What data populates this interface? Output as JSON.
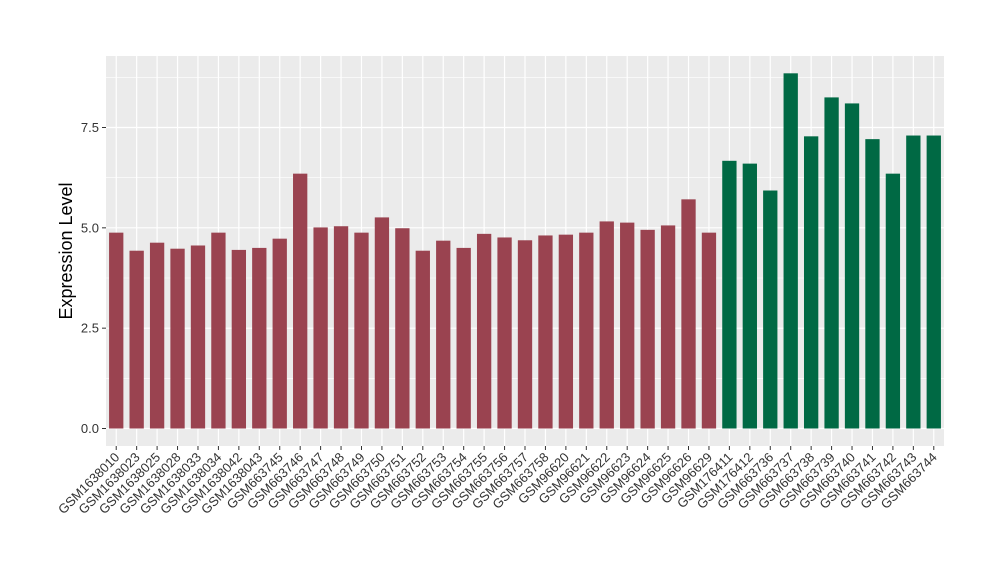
{
  "chart_data": {
    "type": "bar",
    "title": "",
    "xlabel": "",
    "ylabel": "Expression Level",
    "ylim": [
      0,
      8.85
    ],
    "yticks": [
      0.0,
      2.5,
      5.0,
      7.5
    ],
    "ytick_labels": [
      "0.0",
      "2.5",
      "5.0",
      "7.5"
    ],
    "grid": true,
    "legend": "none",
    "panel_background": "#EBEBEB",
    "gridline_color": "#FFFFFF",
    "colors": {
      "group1": "#9A4350",
      "group2": "#006944"
    },
    "categories": [
      "GSM1638010",
      "GSM1638023",
      "GSM1638025",
      "GSM1638028",
      "GSM1638033",
      "GSM1638034",
      "GSM1638042",
      "GSM1638043",
      "GSM663745",
      "GSM663746",
      "GSM663747",
      "GSM663748",
      "GSM663749",
      "GSM663750",
      "GSM663751",
      "GSM663752",
      "GSM663753",
      "GSM663754",
      "GSM663755",
      "GSM663756",
      "GSM663757",
      "GSM663758",
      "GSM96620",
      "GSM96621",
      "GSM96622",
      "GSM96623",
      "GSM96624",
      "GSM96625",
      "GSM96626",
      "GSM96629",
      "GSM176411",
      "GSM176412",
      "GSM663736",
      "GSM663737",
      "GSM663738",
      "GSM663739",
      "GSM663740",
      "GSM663741",
      "GSM663742",
      "GSM663743",
      "GSM663744"
    ],
    "values": [
      4.88,
      4.43,
      4.63,
      4.48,
      4.56,
      4.88,
      4.45,
      4.5,
      4.73,
      6.35,
      5.01,
      5.04,
      4.88,
      5.26,
      4.99,
      4.43,
      4.68,
      4.5,
      4.85,
      4.76,
      4.69,
      4.81,
      4.83,
      4.88,
      5.16,
      5.13,
      4.95,
      5.06,
      5.71,
      4.88,
      6.67,
      6.6,
      5.93,
      8.85,
      7.28,
      8.25,
      8.1,
      7.21,
      6.35,
      7.3,
      7.3
    ],
    "groups": [
      "group1",
      "group1",
      "group1",
      "group1",
      "group1",
      "group1",
      "group1",
      "group1",
      "group1",
      "group1",
      "group1",
      "group1",
      "group1",
      "group1",
      "group1",
      "group1",
      "group1",
      "group1",
      "group1",
      "group1",
      "group1",
      "group1",
      "group1",
      "group1",
      "group1",
      "group1",
      "group1",
      "group1",
      "group1",
      "group1",
      "group2",
      "group2",
      "group2",
      "group2",
      "group2",
      "group2",
      "group2",
      "group2",
      "group2",
      "group2",
      "group2"
    ]
  }
}
